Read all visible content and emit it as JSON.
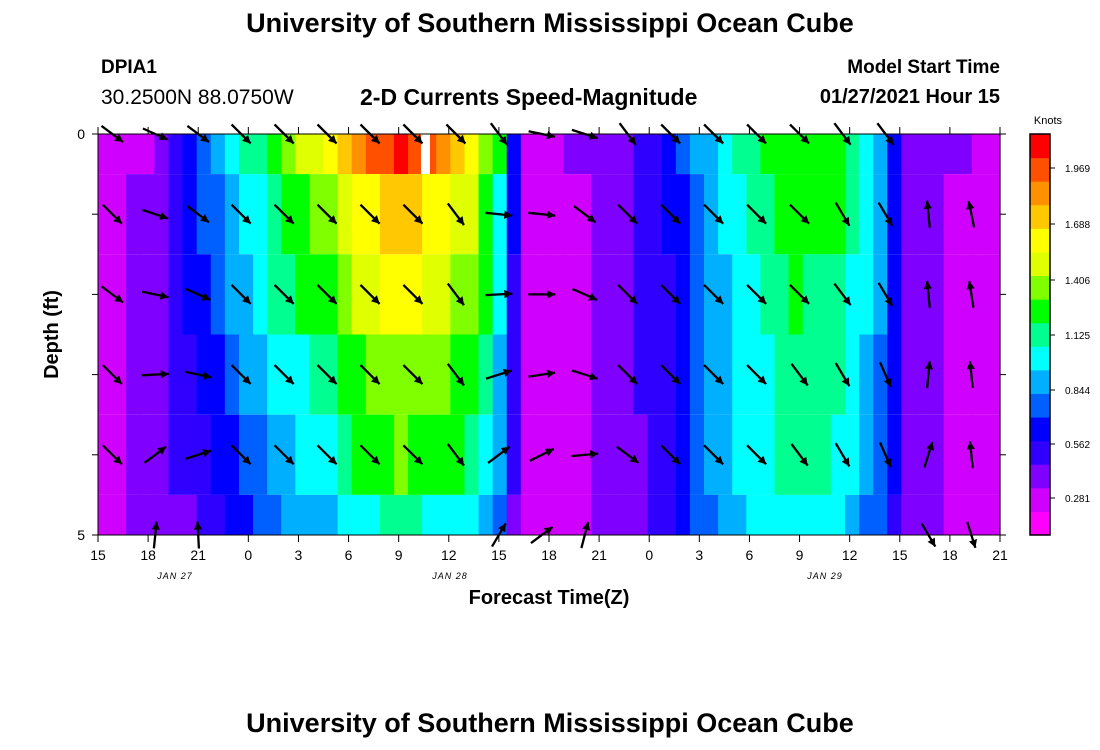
{
  "header": {
    "title": "University of Southern Mississippi Ocean Cube",
    "station": "DPIA1",
    "coords": "30.2500N 88.0750W",
    "subtitle": "2-D Currents Speed-Magnitude",
    "model_label": "Model Start Time",
    "model_time": "01/27/2021 Hour 15"
  },
  "footer": {
    "title": "University of Southern Mississippi Ocean Cube"
  },
  "chart_data": {
    "type": "heatmap",
    "title": "2-D Currents Speed-Magnitude",
    "xlabel": "Forecast Time(Z)",
    "ylabel": "Depth (ft)",
    "x_tick_labels": [
      "15",
      "18",
      "21",
      "0",
      "3",
      "6",
      "9",
      "12",
      "15",
      "18",
      "21",
      "0",
      "3",
      "6",
      "9",
      "12",
      "15",
      "18",
      "21"
    ],
    "date_labels": [
      "JAN 27",
      "JAN 28",
      "JAN 29"
    ],
    "y_tick_labels": [
      "0",
      "5"
    ],
    "ylim": [
      0,
      5
    ],
    "colorbar": {
      "unit": "Knots",
      "ticks": [
        "1.969",
        "1.688",
        "1.406",
        "1.125",
        "0.844",
        "0.562",
        "0.281"
      ],
      "colors": [
        "#ff00ff",
        "#d000ff",
        "#8000ff",
        "#3000ff",
        "#0000ff",
        "#0060ff",
        "#00b0ff",
        "#00ffff",
        "#00ff90",
        "#00ff00",
        "#80ff00",
        "#e0ff00",
        "#ffff00",
        "#ffc800",
        "#ff9000",
        "#ff5000",
        "#ff0000"
      ],
      "max": 2.25
    },
    "depth_rows": [
      0,
      1,
      2,
      3,
      4
    ],
    "column_speeds": {
      "0": [
        0.15,
        0.15,
        0.15,
        0.15,
        0.15,
        0.15
      ],
      "3": [
        0.2,
        0.25,
        0.25,
        0.3,
        0.3,
        0.3
      ],
      "6": [
        0.6,
        0.55,
        0.5,
        0.45,
        0.4,
        0.35
      ],
      "9": [
        0.95,
        0.85,
        0.8,
        0.7,
        0.6,
        0.55
      ],
      "12": [
        1.3,
        1.15,
        1.1,
        0.95,
        0.85,
        0.75
      ],
      "16": [
        1.7,
        1.45,
        1.3,
        1.15,
        1.05,
        0.9
      ],
      "19": [
        2.1,
        1.75,
        1.6,
        1.4,
        1.3,
        1.05
      ],
      "21": [
        2.2,
        1.8,
        1.65,
        1.45,
        1.35,
        1.1
      ],
      "23": [
        2.1,
        1.75,
        1.6,
        1.4,
        1.3,
        1.05
      ],
      "26": [
        1.7,
        1.5,
        1.4,
        1.3,
        1.15,
        1.0
      ],
      "28": [
        1.2,
        1.05,
        1.0,
        0.9,
        0.85,
        0.7
      ],
      "29": [
        0.6,
        0.5,
        0.45,
        0.45,
        0.4,
        0.35
      ],
      "30": [
        0.15,
        0.15,
        0.15,
        0.15,
        0.15,
        0.15
      ],
      "34": [
        0.25,
        0.2,
        0.2,
        0.2,
        0.2,
        0.2
      ],
      "37": [
        0.35,
        0.35,
        0.35,
        0.35,
        0.3,
        0.3
      ],
      "40": [
        0.55,
        0.5,
        0.45,
        0.45,
        0.45,
        0.45
      ],
      "43": [
        0.9,
        0.85,
        0.8,
        0.8,
        0.8,
        0.75
      ],
      "46": [
        1.15,
        1.1,
        1.05,
        1.0,
        1.0,
        0.95
      ],
      "49": [
        1.3,
        1.25,
        1.2,
        1.15,
        1.1,
        1.05
      ],
      "52": [
        1.25,
        1.2,
        1.15,
        1.1,
        1.05,
        1.0
      ],
      "55": [
        0.9,
        0.85,
        0.8,
        0.75,
        0.7,
        0.65
      ],
      "57": [
        0.35,
        0.3,
        0.3,
        0.3,
        0.3,
        0.3
      ],
      "60": [
        0.25,
        0.2,
        0.2,
        0.2,
        0.2,
        0.2
      ],
      "63": [
        0.15,
        0.15,
        0.15,
        0.15,
        0.15,
        0.15
      ]
    },
    "vectors": [
      {
        "time": 1,
        "row": 0,
        "u": 0.8,
        "v": -0.6
      },
      {
        "time": 4,
        "row": 0,
        "u": 0.9,
        "v": -0.4
      },
      {
        "time": 7,
        "row": 0,
        "u": 0.8,
        "v": -0.6
      },
      {
        "time": 10,
        "row": 0,
        "u": 0.7,
        "v": -0.7
      },
      {
        "time": 13,
        "row": 0,
        "u": 0.7,
        "v": -0.7
      },
      {
        "time": 16,
        "row": 0,
        "u": 0.7,
        "v": -0.7
      },
      {
        "time": 19,
        "row": 0,
        "u": 0.7,
        "v": -0.7
      },
      {
        "time": 22,
        "row": 0,
        "u": 0.7,
        "v": -0.7
      },
      {
        "time": 25,
        "row": 0,
        "u": 0.7,
        "v": -0.7
      },
      {
        "time": 28,
        "row": 0,
        "u": 0.6,
        "v": -0.8
      },
      {
        "time": 31,
        "row": 0,
        "u": 0.95,
        "v": -0.2
      },
      {
        "time": 34,
        "row": 0,
        "u": 0.95,
        "v": -0.3
      },
      {
        "time": 37,
        "row": 0,
        "u": 0.6,
        "v": -0.8
      },
      {
        "time": 40,
        "row": 0,
        "u": 0.7,
        "v": -0.7
      },
      {
        "time": 43,
        "row": 0,
        "u": 0.7,
        "v": -0.7
      },
      {
        "time": 46,
        "row": 0,
        "u": 0.7,
        "v": -0.7
      },
      {
        "time": 49,
        "row": 0,
        "u": 0.7,
        "v": -0.7
      },
      {
        "time": 52,
        "row": 0,
        "u": 0.6,
        "v": -0.8
      },
      {
        "time": 55,
        "row": 0,
        "u": 0.6,
        "v": -0.8
      },
      {
        "time": 1,
        "row": 1,
        "u": 0.7,
        "v": -0.7
      },
      {
        "time": 4,
        "row": 1,
        "u": 0.9,
        "v": -0.3
      },
      {
        "time": 7,
        "row": 1,
        "u": 0.8,
        "v": -0.6
      },
      {
        "time": 10,
        "row": 1,
        "u": 0.7,
        "v": -0.7
      },
      {
        "time": 13,
        "row": 1,
        "u": 0.7,
        "v": -0.7
      },
      {
        "time": 16,
        "row": 1,
        "u": 0.7,
        "v": -0.7
      },
      {
        "time": 19,
        "row": 1,
        "u": 0.7,
        "v": -0.7
      },
      {
        "time": 22,
        "row": 1,
        "u": 0.7,
        "v": -0.7
      },
      {
        "time": 25,
        "row": 1,
        "u": 0.6,
        "v": -0.8
      },
      {
        "time": 28,
        "row": 1,
        "u": 0.99,
        "v": -0.1
      },
      {
        "time": 31,
        "row": 1,
        "u": 0.99,
        "v": -0.1
      },
      {
        "time": 34,
        "row": 1,
        "u": 0.8,
        "v": -0.6
      },
      {
        "time": 37,
        "row": 1,
        "u": 0.7,
        "v": -0.7
      },
      {
        "time": 40,
        "row": 1,
        "u": 0.7,
        "v": -0.7
      },
      {
        "time": 43,
        "row": 1,
        "u": 0.7,
        "v": -0.7
      },
      {
        "time": 46,
        "row": 1,
        "u": 0.7,
        "v": -0.7
      },
      {
        "time": 49,
        "row": 1,
        "u": 0.7,
        "v": -0.7
      },
      {
        "time": 52,
        "row": 1,
        "u": 0.5,
        "v": -0.85
      },
      {
        "time": 55,
        "row": 1,
        "u": 0.5,
        "v": -0.85
      },
      {
        "time": 58,
        "row": 1,
        "u": -0.1,
        "v": 0.99
      },
      {
        "time": 61,
        "row": 1,
        "u": -0.2,
        "v": 0.98
      },
      {
        "time": 1,
        "row": 2,
        "u": 0.8,
        "v": -0.6
      },
      {
        "time": 4,
        "row": 2,
        "u": 0.95,
        "v": -0.2
      },
      {
        "time": 7,
        "row": 2,
        "u": 0.9,
        "v": -0.4
      },
      {
        "time": 10,
        "row": 2,
        "u": 0.7,
        "v": -0.7
      },
      {
        "time": 13,
        "row": 2,
        "u": 0.7,
        "v": -0.7
      },
      {
        "time": 16,
        "row": 2,
        "u": 0.7,
        "v": -0.7
      },
      {
        "time": 19,
        "row": 2,
        "u": 0.7,
        "v": -0.7
      },
      {
        "time": 22,
        "row": 2,
        "u": 0.7,
        "v": -0.7
      },
      {
        "time": 25,
        "row": 2,
        "u": 0.6,
        "v": -0.8
      },
      {
        "time": 28,
        "row": 2,
        "u": 1.0,
        "v": 0.05
      },
      {
        "time": 31,
        "row": 2,
        "u": 1.0,
        "v": 0.0
      },
      {
        "time": 34,
        "row": 2,
        "u": 0.9,
        "v": -0.4
      },
      {
        "time": 37,
        "row": 2,
        "u": 0.7,
        "v": -0.7
      },
      {
        "time": 40,
        "row": 2,
        "u": 0.7,
        "v": -0.7
      },
      {
        "time": 43,
        "row": 2,
        "u": 0.7,
        "v": -0.7
      },
      {
        "time": 46,
        "row": 2,
        "u": 0.7,
        "v": -0.7
      },
      {
        "time": 49,
        "row": 2,
        "u": 0.7,
        "v": -0.7
      },
      {
        "time": 52,
        "row": 2,
        "u": 0.6,
        "v": -0.8
      },
      {
        "time": 55,
        "row": 2,
        "u": 0.5,
        "v": -0.85
      },
      {
        "time": 58,
        "row": 2,
        "u": -0.1,
        "v": 0.99
      },
      {
        "time": 61,
        "row": 2,
        "u": -0.15,
        "v": 0.99
      },
      {
        "time": 1,
        "row": 3,
        "u": 0.7,
        "v": -0.7
      },
      {
        "time": 4,
        "row": 3,
        "u": 1.0,
        "v": 0.05
      },
      {
        "time": 7,
        "row": 3,
        "u": 0.95,
        "v": -0.2
      },
      {
        "time": 10,
        "row": 3,
        "u": 0.7,
        "v": -0.7
      },
      {
        "time": 13,
        "row": 3,
        "u": 0.7,
        "v": -0.7
      },
      {
        "time": 16,
        "row": 3,
        "u": 0.7,
        "v": -0.7
      },
      {
        "time": 19,
        "row": 3,
        "u": 0.7,
        "v": -0.7
      },
      {
        "time": 22,
        "row": 3,
        "u": 0.7,
        "v": -0.7
      },
      {
        "time": 25,
        "row": 3,
        "u": 0.6,
        "v": -0.8
      },
      {
        "time": 28,
        "row": 3,
        "u": 0.95,
        "v": 0.3
      },
      {
        "time": 31,
        "row": 3,
        "u": 0.98,
        "v": 0.15
      },
      {
        "time": 34,
        "row": 3,
        "u": 0.95,
        "v": -0.3
      },
      {
        "time": 37,
        "row": 3,
        "u": 0.7,
        "v": -0.7
      },
      {
        "time": 40,
        "row": 3,
        "u": 0.7,
        "v": -0.7
      },
      {
        "time": 43,
        "row": 3,
        "u": 0.7,
        "v": -0.7
      },
      {
        "time": 46,
        "row": 3,
        "u": 0.7,
        "v": -0.7
      },
      {
        "time": 49,
        "row": 3,
        "u": 0.6,
        "v": -0.8
      },
      {
        "time": 52,
        "row": 3,
        "u": 0.5,
        "v": -0.85
      },
      {
        "time": 55,
        "row": 3,
        "u": 0.4,
        "v": -0.9
      },
      {
        "time": 58,
        "row": 3,
        "u": 0.1,
        "v": 0.99
      },
      {
        "time": 61,
        "row": 3,
        "u": -0.1,
        "v": 0.99
      },
      {
        "time": 1,
        "row": 4,
        "u": 0.7,
        "v": -0.7
      },
      {
        "time": 4,
        "row": 4,
        "u": 0.8,
        "v": 0.6
      },
      {
        "time": 7,
        "row": 4,
        "u": 0.95,
        "v": 0.3
      },
      {
        "time": 10,
        "row": 4,
        "u": 0.7,
        "v": -0.7
      },
      {
        "time": 13,
        "row": 4,
        "u": 0.7,
        "v": -0.7
      },
      {
        "time": 16,
        "row": 4,
        "u": 0.7,
        "v": -0.7
      },
      {
        "time": 19,
        "row": 4,
        "u": 0.7,
        "v": -0.7
      },
      {
        "time": 22,
        "row": 4,
        "u": 0.7,
        "v": -0.7
      },
      {
        "time": 25,
        "row": 4,
        "u": 0.6,
        "v": -0.8
      },
      {
        "time": 28,
        "row": 4,
        "u": 0.8,
        "v": 0.6
      },
      {
        "time": 31,
        "row": 4,
        "u": 0.9,
        "v": 0.45
      },
      {
        "time": 34,
        "row": 4,
        "u": 1.0,
        "v": 0.1
      },
      {
        "time": 37,
        "row": 4,
        "u": 0.8,
        "v": -0.6
      },
      {
        "time": 40,
        "row": 4,
        "u": 0.7,
        "v": -0.7
      },
      {
        "time": 43,
        "row": 4,
        "u": 0.7,
        "v": -0.7
      },
      {
        "time": 46,
        "row": 4,
        "u": 0.7,
        "v": -0.7
      },
      {
        "time": 49,
        "row": 4,
        "u": 0.6,
        "v": -0.8
      },
      {
        "time": 52,
        "row": 4,
        "u": 0.5,
        "v": -0.85
      },
      {
        "time": 55,
        "row": 4,
        "u": 0.4,
        "v": -0.9
      },
      {
        "time": 58,
        "row": 4,
        "u": 0.3,
        "v": 0.95
      },
      {
        "time": 61,
        "row": 4,
        "u": -0.1,
        "v": 0.99
      },
      {
        "time": 4,
        "row": 5,
        "u": 0.1,
        "v": 0.99
      },
      {
        "time": 7,
        "row": 5,
        "u": -0.05,
        "v": 0.99
      },
      {
        "time": 28,
        "row": 5,
        "u": 0.5,
        "v": 0.85
      },
      {
        "time": 31,
        "row": 5,
        "u": 0.8,
        "v": 0.6
      },
      {
        "time": 34,
        "row": 5,
        "u": 0.25,
        "v": 0.97
      },
      {
        "time": 58,
        "row": 5,
        "u": 0.5,
        "v": -0.85
      },
      {
        "time": 61,
        "row": 5,
        "u": 0.3,
        "v": -0.95
      }
    ],
    "annotations": []
  }
}
